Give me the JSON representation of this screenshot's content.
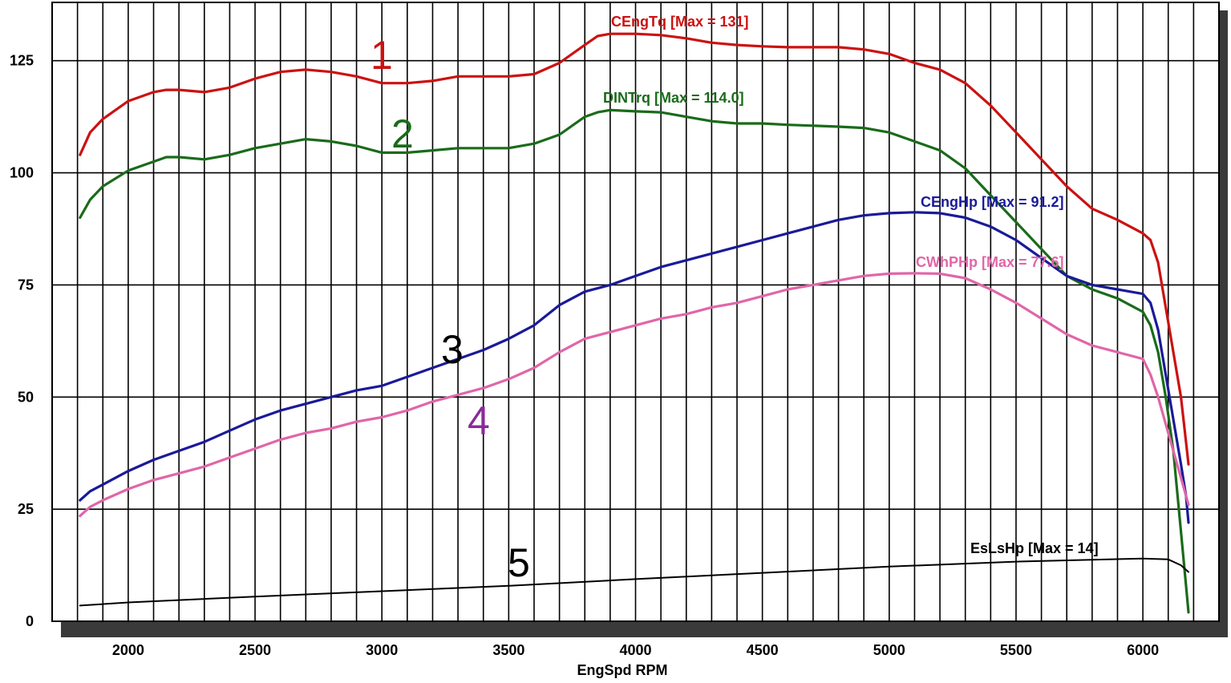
{
  "chart_data": {
    "type": "line",
    "xlabel": "EngSpd RPM",
    "ylabel": "",
    "xlim": [
      1700,
      6300
    ],
    "ylim": [
      0,
      138
    ],
    "x_ticks": [
      2000,
      2500,
      3000,
      3500,
      4000,
      4500,
      5000,
      5500,
      6000
    ],
    "y_ticks": [
      0,
      25,
      50,
      75,
      100,
      125
    ],
    "grid": true,
    "series": [
      {
        "name": "CEngTq [Max = 131]",
        "number": "1",
        "color": "#cc1111",
        "numberColor": "#cc1111",
        "x": [
          1810,
          1850,
          1900,
          2000,
          2100,
          2150,
          2200,
          2300,
          2400,
          2500,
          2600,
          2700,
          2800,
          2900,
          3000,
          3100,
          3200,
          3300,
          3400,
          3500,
          3600,
          3700,
          3800,
          3850,
          3900,
          4000,
          4100,
          4200,
          4300,
          4400,
          4500,
          4600,
          4700,
          4800,
          4900,
          5000,
          5100,
          5200,
          5300,
          5400,
          5500,
          5600,
          5700,
          5800,
          5900,
          5950,
          6000,
          6030,
          6060,
          6090,
          6120,
          6150,
          6170,
          6180
        ],
        "y": [
          104,
          109,
          112,
          116,
          118,
          118.5,
          118.5,
          118,
          119,
          121,
          122.5,
          123,
          122.5,
          121.5,
          120,
          120,
          120.5,
          121.5,
          121.5,
          121.5,
          122,
          124.5,
          128.5,
          130.5,
          131,
          131,
          130.7,
          130,
          129,
          128.5,
          128.2,
          128,
          128,
          128,
          127.5,
          126.5,
          124.5,
          123,
          120,
          115,
          109,
          103,
          97,
          92,
          89.5,
          88,
          86.5,
          85,
          80,
          70,
          60,
          50,
          40,
          35
        ]
      },
      {
        "name": "DINTrq [Max = 114.0]",
        "number": "2",
        "color": "#1a6b1a",
        "numberColor": "#1a6b1a",
        "x": [
          1810,
          1850,
          1900,
          2000,
          2100,
          2150,
          2200,
          2300,
          2400,
          2500,
          2600,
          2700,
          2800,
          2900,
          3000,
          3100,
          3200,
          3300,
          3400,
          3500,
          3600,
          3700,
          3800,
          3850,
          3900,
          4000,
          4100,
          4200,
          4300,
          4400,
          4500,
          4600,
          4700,
          4800,
          4900,
          5000,
          5100,
          5200,
          5300,
          5400,
          5500,
          5600,
          5700,
          5800,
          5900,
          6000,
          6030,
          6060,
          6090,
          6120,
          6150,
          6170,
          6180
        ],
        "y": [
          90,
          94,
          97,
          100.5,
          102.5,
          103.5,
          103.5,
          103,
          104,
          105.5,
          106.5,
          107.5,
          107,
          106,
          104.5,
          104.5,
          105,
          105.5,
          105.5,
          105.5,
          106.5,
          108.5,
          112.5,
          113.5,
          114,
          113.7,
          113.5,
          112.5,
          111.5,
          111,
          111,
          110.7,
          110.5,
          110.3,
          110,
          109,
          107,
          105,
          101,
          95,
          89,
          83,
          77,
          74,
          72,
          69,
          66,
          60,
          50,
          38,
          20,
          8,
          2
        ]
      },
      {
        "name": "CEngHp [Max = 91.2]",
        "number": "3",
        "color": "#1a1a99",
        "numberColor": "#000000",
        "x": [
          1810,
          1850,
          1900,
          2000,
          2100,
          2200,
          2300,
          2400,
          2500,
          2600,
          2700,
          2800,
          2900,
          3000,
          3100,
          3200,
          3300,
          3400,
          3500,
          3600,
          3700,
          3800,
          3900,
          4000,
          4100,
          4200,
          4300,
          4400,
          4500,
          4600,
          4700,
          4800,
          4900,
          5000,
          5100,
          5200,
          5300,
          5400,
          5500,
          5600,
          5700,
          5800,
          5900,
          6000,
          6030,
          6060,
          6090,
          6120,
          6150,
          6170,
          6180
        ],
        "y": [
          27,
          29,
          30.5,
          33.5,
          36,
          38,
          40,
          42.5,
          45,
          47,
          48.5,
          50,
          51.5,
          52.5,
          54.5,
          56.5,
          58.5,
          60.5,
          63,
          66,
          70.5,
          73.5,
          75,
          77,
          79,
          80.5,
          82,
          83.5,
          85,
          86.5,
          88,
          89.5,
          90.5,
          91,
          91.2,
          91,
          90,
          88,
          85,
          81,
          77,
          75,
          74,
          73,
          71,
          65,
          55,
          45,
          35,
          28,
          22
        ]
      },
      {
        "name": "CWhPHp [Max = 77.6]",
        "number": "4",
        "color": "#e066a8",
        "numberColor": "#8a2a9a",
        "x": [
          1810,
          1850,
          1900,
          2000,
          2100,
          2200,
          2300,
          2400,
          2500,
          2600,
          2700,
          2800,
          2900,
          3000,
          3100,
          3200,
          3300,
          3400,
          3500,
          3600,
          3700,
          3800,
          3900,
          4000,
          4100,
          4200,
          4300,
          4400,
          4500,
          4600,
          4700,
          4800,
          4900,
          5000,
          5100,
          5200,
          5300,
          5400,
          5500,
          5600,
          5700,
          5800,
          5900,
          6000,
          6030,
          6060,
          6090,
          6120,
          6150,
          6170,
          6180
        ],
        "y": [
          23.5,
          25.5,
          27,
          29.5,
          31.5,
          33,
          34.5,
          36.5,
          38.5,
          40.5,
          42,
          43,
          44.5,
          45.5,
          47,
          49,
          50.5,
          52,
          54,
          56.5,
          60,
          63,
          64.5,
          66,
          67.5,
          68.5,
          70,
          71,
          72.5,
          74,
          75,
          76,
          77,
          77.5,
          77.6,
          77.5,
          76.5,
          74,
          71,
          67.5,
          64,
          61.5,
          60,
          58.5,
          55,
          50,
          44,
          38,
          32,
          28,
          26
        ]
      },
      {
        "name": "EsLsHp [Max = 14]",
        "number": "5",
        "color": "#000000",
        "numberColor": "#000000",
        "x": [
          1810,
          2000,
          2500,
          3000,
          3500,
          4000,
          4500,
          5000,
          5500,
          6000,
          6100,
          6150,
          6180
        ],
        "y": [
          3.5,
          4.2,
          5.5,
          6.7,
          7.9,
          9.4,
          10.8,
          12.2,
          13.3,
          14,
          13.8,
          12.5,
          11
        ]
      }
    ]
  }
}
